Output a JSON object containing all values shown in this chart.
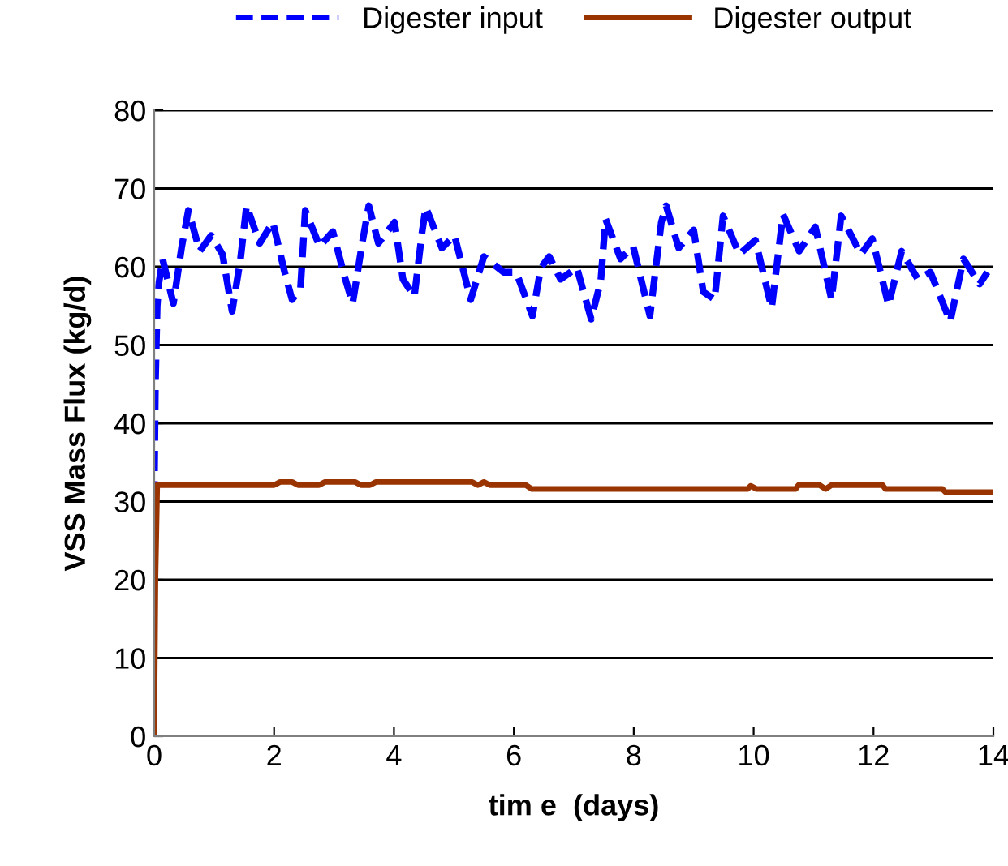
{
  "chart_data": {
    "type": "line",
    "xlabel": "tim e  (days)",
    "ylabel": "VSS Mass Flux (kg/d)",
    "xlim": [
      0,
      14
    ],
    "xticks": [
      0,
      2,
      4,
      6,
      8,
      10,
      12,
      14
    ],
    "ylim": [
      0,
      80
    ],
    "yticks": [
      0,
      10,
      20,
      30,
      40,
      50,
      60,
      70,
      80
    ],
    "grid": "y",
    "legend": "top",
    "series": [
      {
        "name": "Digester input",
        "color": "#0000ff",
        "line_style": "dashed",
        "x": [
          0,
          0.02,
          0.05,
          0.08,
          0.14,
          0.32,
          0.46,
          0.57,
          0.76,
          0.95,
          1.14,
          1.3,
          1.44,
          1.54,
          1.76,
          1.98,
          2.17,
          2.3,
          2.44,
          2.52,
          2.76,
          2.98,
          3.17,
          3.31,
          3.47,
          3.58,
          3.74,
          4.01,
          4.15,
          4.34,
          4.47,
          4.53,
          4.8,
          5.01,
          5.28,
          5.5,
          5.83,
          6.04,
          6.31,
          6.45,
          6.59,
          6.78,
          7.05,
          7.29,
          7.45,
          7.53,
          7.78,
          7.99,
          8.27,
          8.46,
          8.54,
          8.75,
          9.0,
          9.16,
          9.35,
          9.49,
          9.76,
          10.03,
          10.3,
          10.49,
          10.76,
          11.03,
          11.3,
          11.46,
          11.79,
          11.98,
          12.25,
          12.47,
          12.74,
          12.95,
          13.28,
          13.5,
          13.77,
          13.9
        ],
        "values": [
          30,
          45,
          55,
          58,
          61,
          55.3,
          62.6,
          67.2,
          62,
          64,
          61.6,
          54.3,
          61,
          67.8,
          63,
          65.7,
          59.5,
          55.8,
          57.2,
          67.2,
          62.6,
          64.5,
          58.9,
          55.3,
          63,
          67.8,
          63,
          65.7,
          58.4,
          56.2,
          64.5,
          67.6,
          62.4,
          64,
          55.8,
          61.3,
          59.3,
          59.3,
          53.7,
          59.9,
          61.3,
          58.4,
          59.9,
          53.3,
          58.2,
          66.1,
          61,
          62.6,
          53.7,
          65.7,
          67.8,
          62.4,
          64.7,
          56.8,
          55.8,
          66.5,
          61.6,
          63.4,
          54.7,
          66.7,
          62,
          65.1,
          55.8,
          66.5,
          61.6,
          63.6,
          55.1,
          62,
          58.4,
          59.3,
          53,
          61,
          57.8,
          59.3
        ]
      },
      {
        "name": "Digester output",
        "color": "#993300",
        "line_style": "solid",
        "x": [
          0,
          0.02,
          0.05,
          2.0,
          2.1,
          2.3,
          2.4,
          2.75,
          2.85,
          3.35,
          3.45,
          3.6,
          3.7,
          5.3,
          5.4,
          5.5,
          5.6,
          6.2,
          6.3,
          9.9,
          9.95,
          10.05,
          10.7,
          10.75,
          11.1,
          11.2,
          11.3,
          12.15,
          12.2,
          13.15,
          13.2,
          14
        ],
        "values": [
          0,
          20,
          32.1,
          32.1,
          32.5,
          32.5,
          32.1,
          32.1,
          32.5,
          32.5,
          32.1,
          32.1,
          32.5,
          32.5,
          32.1,
          32.5,
          32.1,
          32.1,
          31.6,
          31.6,
          32.0,
          31.6,
          31.6,
          32.1,
          32.1,
          31.6,
          32.1,
          32.1,
          31.6,
          31.6,
          31.2,
          31.2
        ]
      }
    ]
  }
}
